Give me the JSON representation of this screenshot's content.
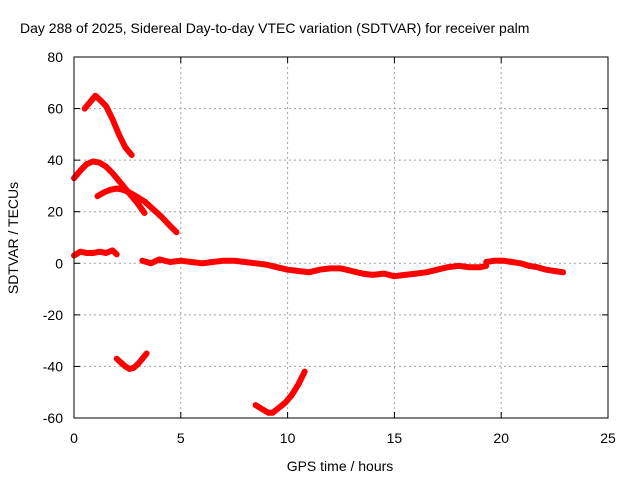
{
  "chart_data": {
    "type": "line",
    "title": "Day 288 of 2025, Sidereal Day-to-day VTEC variation (SDTVAR) for receiver palm",
    "xlabel": "GPS time / hours",
    "ylabel": "SDTVAR / TECUs",
    "xlim": [
      0,
      25
    ],
    "ylim": [
      -60,
      80
    ],
    "xticks": [
      "0",
      "5",
      "10",
      "15",
      "20",
      "25"
    ],
    "yticks": [
      "80",
      "60",
      "40",
      "20",
      "0",
      "-20",
      "-40",
      "-60"
    ],
    "grid": true,
    "color": "#ff0000",
    "series": [
      {
        "name": "arc-peak-65",
        "x": [
          0.5,
          0.8,
          1.0,
          1.2,
          1.5,
          1.8,
          2.1,
          2.4,
          2.7
        ],
        "y": [
          60,
          63,
          65,
          63.5,
          61,
          56,
          50,
          45,
          42
        ]
      },
      {
        "name": "arc-peak-40",
        "x": [
          0.0,
          0.3,
          0.6,
          0.9,
          1.2,
          1.5,
          1.8,
          2.1,
          2.4,
          2.7,
          3.0,
          3.3
        ],
        "y": [
          33,
          36,
          38.5,
          39.5,
          39,
          37.5,
          35,
          32,
          29,
          26,
          23,
          19.5
        ]
      },
      {
        "name": "arc-peak-29",
        "x": [
          1.1,
          1.4,
          1.7,
          2.0,
          2.3,
          2.6,
          2.9,
          3.3,
          3.7,
          4.1,
          4.5,
          4.8
        ],
        "y": [
          26,
          27.5,
          28.5,
          29,
          28.5,
          27.5,
          26,
          24,
          21,
          18,
          14.5,
          12
        ]
      },
      {
        "name": "arc-near-zero-early",
        "x": [
          0.0,
          0.3,
          0.6,
          0.9,
          1.2,
          1.5,
          1.8,
          2.0
        ],
        "y": [
          3,
          4.5,
          4,
          4,
          4.5,
          4,
          5,
          3.5
        ]
      },
      {
        "name": "arc-near-zero-long",
        "x": [
          3.2,
          3.6,
          4.0,
          4.5,
          5.0,
          5.5,
          6.0,
          6.5,
          7.0,
          7.5,
          8.0,
          8.5,
          9.0,
          9.5,
          10.0,
          10.5,
          11.0,
          11.5,
          12.0,
          12.5,
          13.0,
          13.5,
          14.0,
          14.5,
          15.0,
          15.5,
          16.0,
          16.5,
          17.0,
          17.5,
          18.0,
          18.5,
          19.0,
          19.3
        ],
        "y": [
          1,
          0,
          1.5,
          0.5,
          1,
          0.5,
          0,
          0.5,
          1,
          1,
          0.5,
          0,
          -0.5,
          -1.5,
          -2.5,
          -3,
          -3.5,
          -2.5,
          -2,
          -2,
          -3,
          -4,
          -4.5,
          -4,
          -5,
          -4.5,
          -4,
          -3.5,
          -2.5,
          -1.5,
          -1,
          -1.5,
          -1.5,
          -1
        ]
      },
      {
        "name": "arc-near-zero-late",
        "x": [
          19.3,
          19.7,
          20.1,
          20.5,
          20.9,
          21.3,
          21.7,
          22.1,
          22.5,
          22.9
        ],
        "y": [
          0.5,
          1,
          1,
          0.5,
          0,
          -1,
          -1.5,
          -2.5,
          -3,
          -3.5
        ]
      },
      {
        "name": "arc-trough-40",
        "x": [
          2.0,
          2.2,
          2.4,
          2.6,
          2.8,
          3.0,
          3.2,
          3.4
        ],
        "y": [
          -37,
          -38.5,
          -40,
          -41,
          -40.5,
          -39,
          -37,
          -35
        ]
      },
      {
        "name": "arc-trough-58",
        "x": [
          8.5,
          8.8,
          9.1,
          9.3,
          9.6,
          9.9,
          10.2,
          10.5,
          10.8
        ],
        "y": [
          -55,
          -56.5,
          -58,
          -58,
          -56,
          -54,
          -51,
          -47,
          -42
        ]
      }
    ]
  }
}
